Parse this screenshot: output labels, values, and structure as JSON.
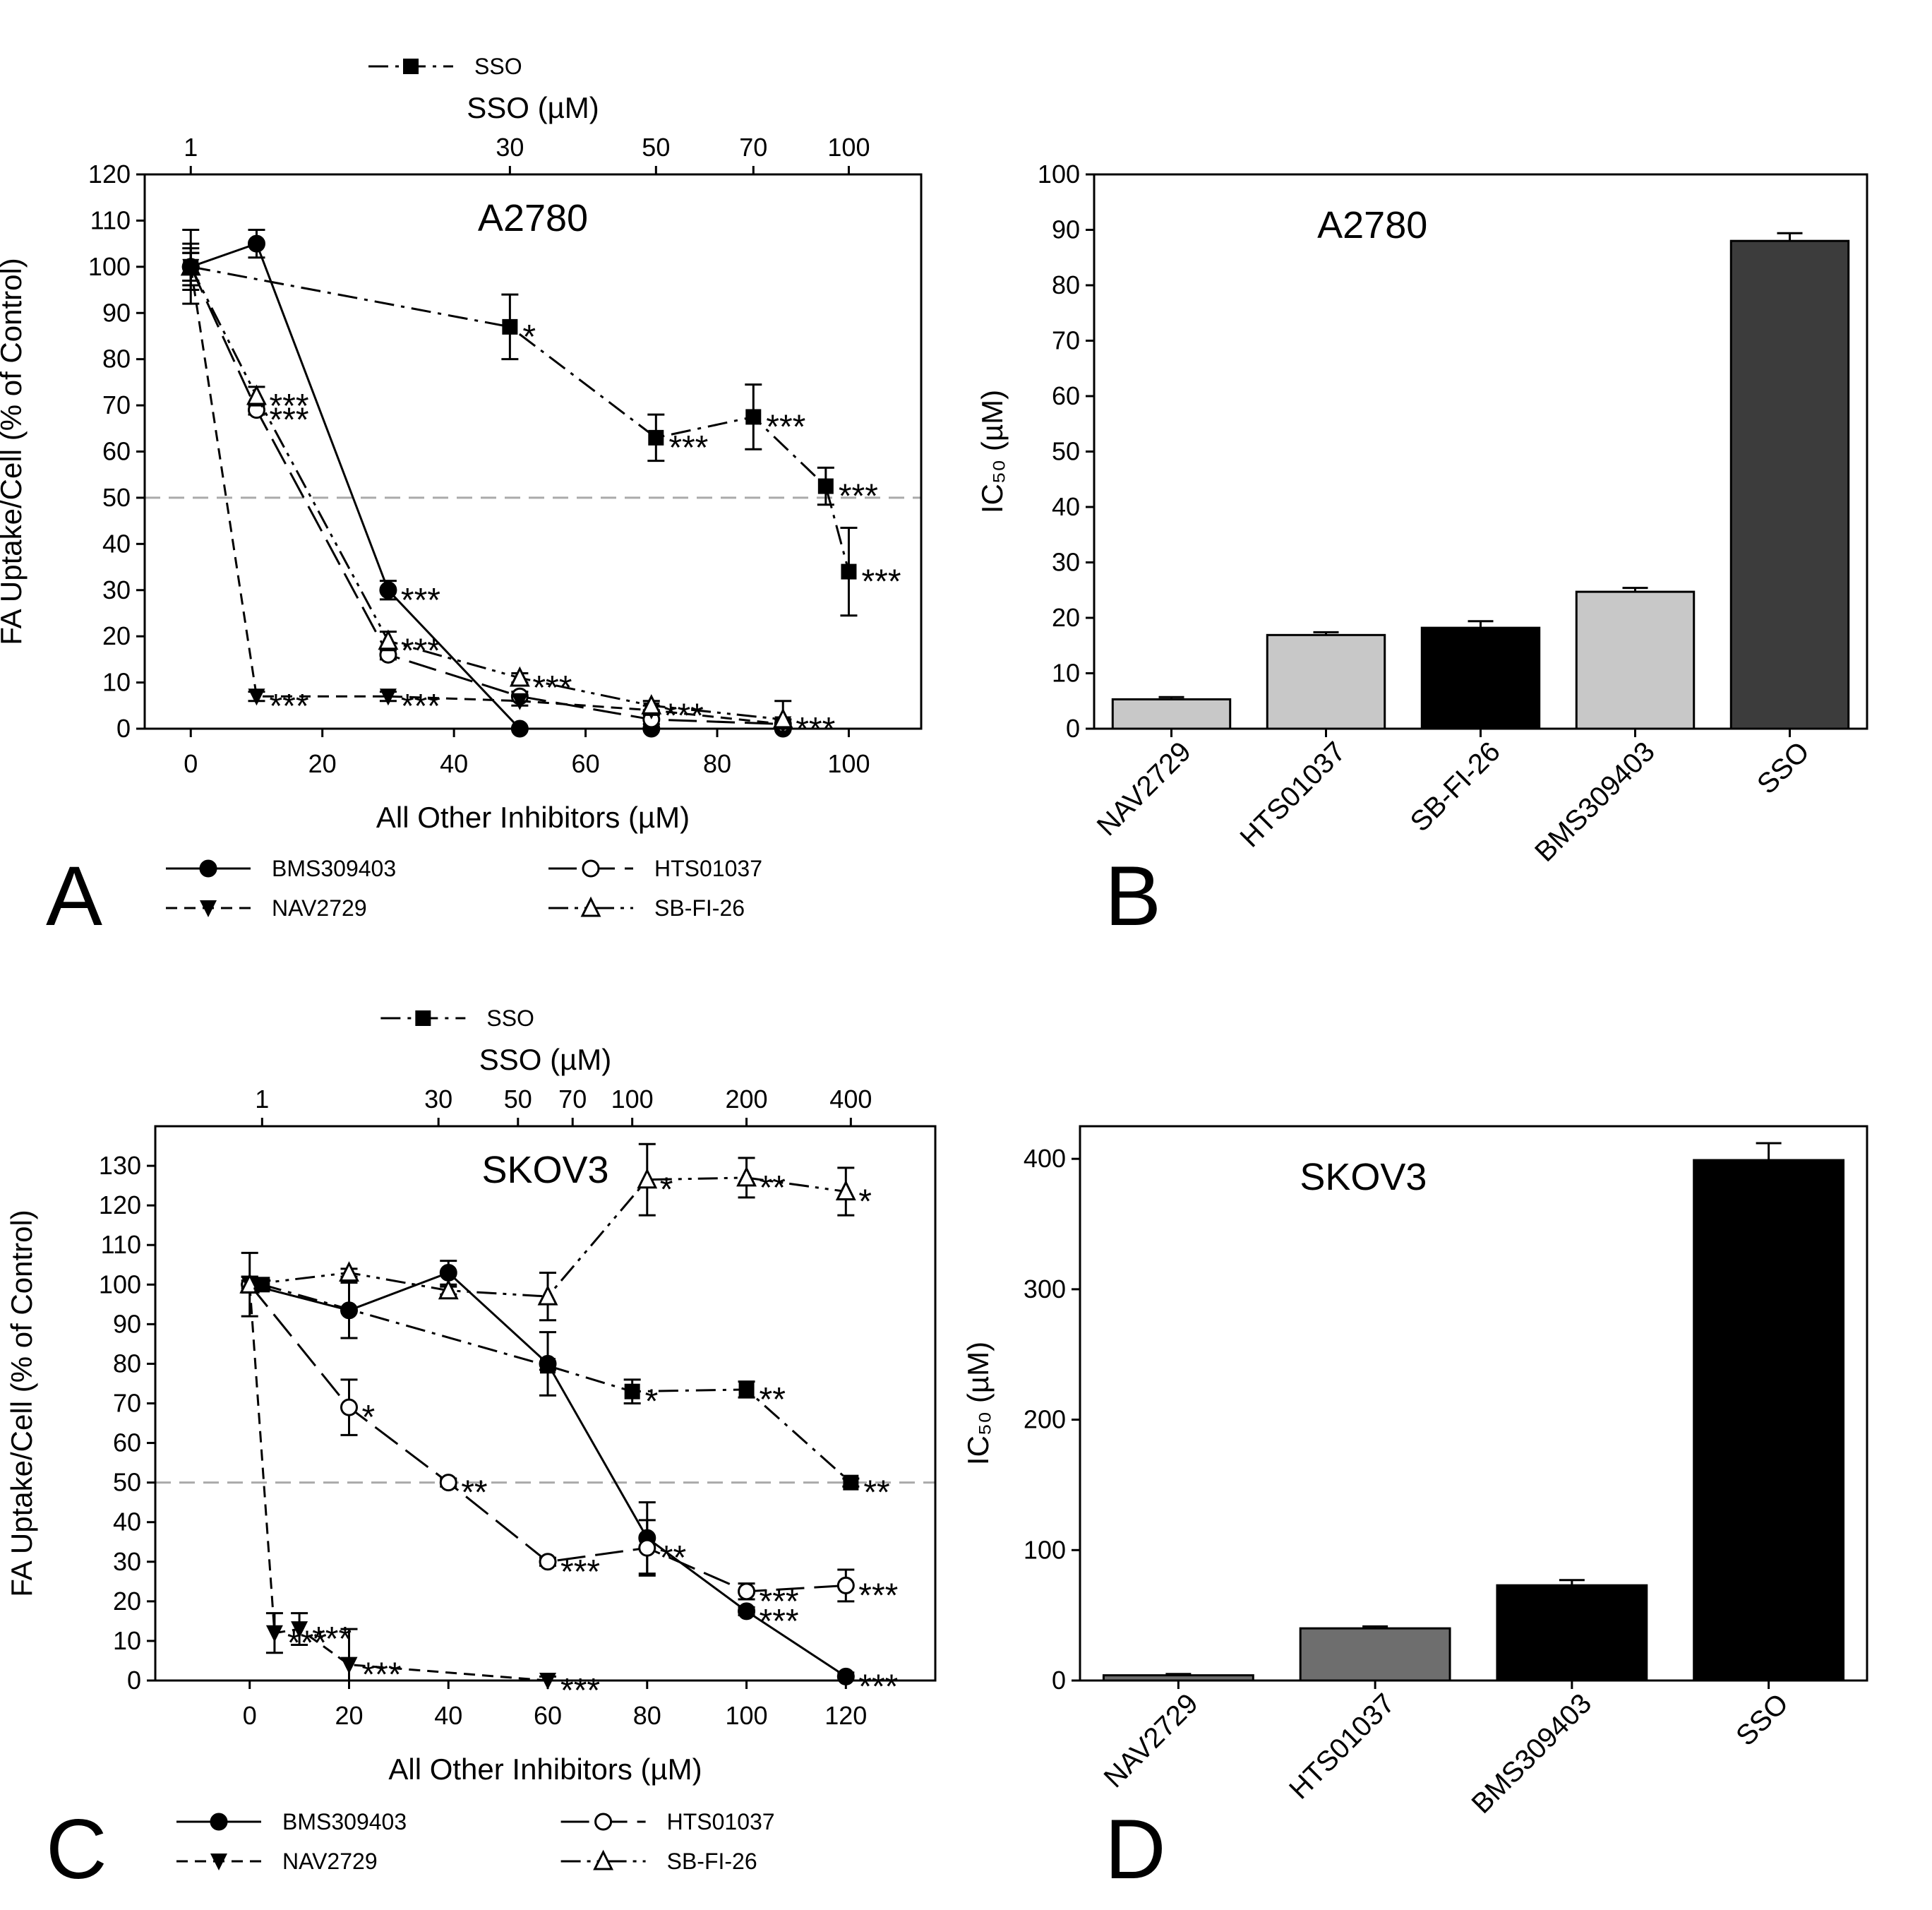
{
  "panels": {
    "A": {
      "label": "A"
    },
    "B": {
      "label": "B"
    },
    "C": {
      "label": "C"
    },
    "D": {
      "label": "D"
    }
  },
  "chart_data": [
    {
      "panel": "A",
      "type": "line",
      "title": "A2780",
      "xlabel": "All Other Inhibitors (µM)",
      "ylabel": "FA Uptake/Cell (% of Control)",
      "x2label": "SSO (µM)",
      "xlim": [
        -7,
        111
      ],
      "ylim": [
        0,
        120
      ],
      "xticks": [
        0,
        20,
        40,
        60,
        80,
        100
      ],
      "yticks": [
        0,
        10,
        20,
        30,
        40,
        50,
        60,
        70,
        80,
        90,
        100,
        110,
        120
      ],
      "x2ticks": [
        {
          "x": 0,
          "label": "1"
        },
        {
          "x": 48.5,
          "label": "30"
        },
        {
          "x": 70.7,
          "label": "50"
        },
        {
          "x": 85.5,
          "label": "70"
        },
        {
          "x": 100,
          "label": "100"
        }
      ],
      "ref_line": 50,
      "series": [
        {
          "name": "BMS309403",
          "style": "solid",
          "marker": "circle-filled",
          "x": [
            0,
            10,
            30,
            50,
            70,
            90
          ],
          "y": [
            100,
            105,
            30,
            0,
            0,
            0
          ],
          "err": [
            8,
            3,
            2,
            0,
            0,
            0
          ],
          "stars": [
            "",
            "",
            "***",
            "",
            "",
            ""
          ]
        },
        {
          "name": "HTS01037",
          "style": "longdash",
          "marker": "circle-open",
          "x": [
            0,
            10,
            30,
            50,
            70,
            90
          ],
          "y": [
            100,
            69,
            16,
            7,
            2,
            1
          ],
          "err": [
            5,
            1,
            1,
            1,
            1,
            1
          ],
          "stars": [
            "",
            "***",
            "",
            "",
            "",
            ""
          ]
        },
        {
          "name": "NAV2729",
          "style": "shortdash",
          "marker": "triangle-down-filled",
          "x": [
            0,
            10,
            30,
            50,
            70,
            90
          ],
          "y": [
            100,
            7,
            7,
            6,
            4,
            1
          ],
          "err": [
            3,
            1,
            1,
            1,
            1,
            1
          ],
          "stars": [
            "",
            "***",
            "***",
            "",
            "",
            ""
          ]
        },
        {
          "name": "SB-FI-26",
          "style": "dashdotdot",
          "marker": "triangle-up-open",
          "x": [
            0,
            10,
            30,
            50,
            70,
            90
          ],
          "y": [
            100,
            72,
            19,
            11,
            5,
            2
          ],
          "err": [
            3,
            2,
            2,
            1,
            1,
            4
          ],
          "stars": [
            "",
            "***",
            "***",
            "***",
            "***",
            "***"
          ]
        },
        {
          "name": "SSO",
          "style": "dashdot",
          "marker": "square-filled",
          "axis": "top",
          "x": [
            0,
            48.5,
            70.7,
            85.5,
            96.5,
            100
          ],
          "y": [
            100,
            87,
            63,
            67.5,
            52.5,
            34
          ],
          "err": [
            4,
            7,
            5,
            7,
            4,
            9.5
          ],
          "stars": [
            "",
            "*",
            "***",
            "***",
            "***",
            "***"
          ]
        }
      ]
    },
    {
      "panel": "B",
      "type": "bar",
      "title": "A2780",
      "ylabel": "IC₅₀ (µM)",
      "ylim": [
        0,
        100
      ],
      "yticks": [
        0,
        10,
        20,
        30,
        40,
        50,
        60,
        70,
        80,
        90,
        100
      ],
      "categories": [
        "NAV2729",
        "HTS01037",
        "SB-FI-26",
        "BMS309403",
        "SSO"
      ],
      "values": [
        5.3,
        16.9,
        18.2,
        24.7,
        88
      ],
      "errors": [
        0.4,
        0.5,
        1.2,
        0.7,
        1.4
      ],
      "colors": [
        "#c8c8c8",
        "#c8c8c8",
        "#000000",
        "#c8c8c8",
        "#3c3c3c"
      ]
    },
    {
      "panel": "C",
      "type": "line",
      "title": "SKOV3",
      "xlabel": "All Other Inhibitors (µM)",
      "ylabel": "FA Uptake/Cell (% of Control)",
      "x2label": "SSO (µM)",
      "xlim": [
        -19,
        138
      ],
      "ylim": [
        0,
        140
      ],
      "xticks": [
        0,
        20,
        40,
        60,
        80,
        100,
        120
      ],
      "yticks": [
        0,
        10,
        20,
        30,
        40,
        50,
        60,
        70,
        80,
        90,
        100,
        110,
        120,
        130
      ],
      "x2ticks": [
        {
          "x": 2.5,
          "label": "1"
        },
        {
          "x": 38,
          "label": "30"
        },
        {
          "x": 54,
          "label": "50"
        },
        {
          "x": 65,
          "label": "70"
        },
        {
          "x": 77,
          "label": "100"
        },
        {
          "x": 100,
          "label": "200"
        },
        {
          "x": 121,
          "label": "400"
        }
      ],
      "ref_line": 50,
      "series": [
        {
          "name": "BMS309403",
          "style": "solid",
          "marker": "circle-filled",
          "x": [
            0,
            20,
            40,
            60,
            80,
            100,
            120
          ],
          "y": [
            100,
            93.5,
            103,
            80,
            36,
            17.5,
            1
          ],
          "err": [
            8,
            7,
            3,
            8,
            9,
            1,
            1
          ],
          "stars": [
            "",
            "",
            "",
            "",
            "",
            "***",
            "***"
          ]
        },
        {
          "name": "HTS01037",
          "style": "longdash",
          "marker": "circle-open",
          "x": [
            0,
            20,
            40,
            60,
            80,
            100,
            120
          ],
          "y": [
            100,
            69,
            50,
            30,
            33.5,
            22.5,
            24
          ],
          "err": [
            2,
            7,
            1,
            1,
            7,
            2,
            4
          ],
          "stars": [
            "",
            "*",
            "**",
            "***",
            "**",
            "***",
            "***"
          ]
        },
        {
          "name": "NAV2729",
          "style": "shortdash",
          "marker": "triangle-down-filled",
          "x": [
            0,
            5,
            10,
            20,
            60
          ],
          "y": [
            100,
            12,
            13,
            4,
            0
          ],
          "err": [
            2,
            5,
            4,
            9,
            1
          ],
          "stars": [
            "",
            "***",
            "***",
            "***",
            "***"
          ]
        },
        {
          "name": "SB-FI-26",
          "style": "dashdotdot",
          "marker": "triangle-up-open",
          "x": [
            0,
            20,
            40,
            60,
            80,
            100,
            120
          ],
          "y": [
            100,
            103,
            98.5,
            97,
            126.5,
            127,
            123.5
          ],
          "err": [
            1,
            1,
            1,
            6,
            9,
            5,
            6
          ],
          "stars": [
            "",
            "",
            "",
            "",
            "*",
            "**",
            "*"
          ]
        },
        {
          "name": "SSO",
          "style": "dashdot",
          "marker": "square-filled",
          "axis": "top",
          "x": [
            2.5,
            60,
            77,
            100,
            121
          ],
          "y": [
            100,
            79.5,
            73,
            73.5,
            50
          ],
          "err": [
            1,
            1,
            3,
            2,
            1
          ],
          "stars": [
            "",
            "",
            "*",
            "**",
            "**"
          ]
        }
      ]
    },
    {
      "panel": "D",
      "type": "bar",
      "title": "SKOV3",
      "ylabel": "IC₅₀ (µM)",
      "ylim": [
        0,
        425
      ],
      "yticks": [
        0,
        100,
        200,
        300,
        400
      ],
      "categories": [
        "NAV2729",
        "HTS01037",
        "BMS309403",
        "SSO"
      ],
      "values": [
        4,
        40,
        73,
        399
      ],
      "errors": [
        1,
        1.5,
        4,
        13
      ],
      "colors": [
        "#6e6e6e",
        "#6e6e6e",
        "#000000",
        "#000000"
      ]
    }
  ]
}
